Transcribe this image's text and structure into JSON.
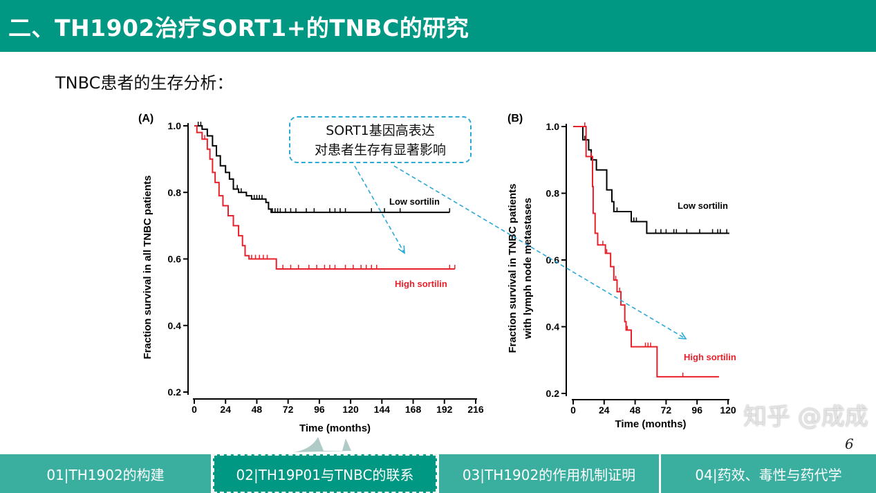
{
  "header": {
    "title": "二、TH1902治疗SORT1+的TNBC的研究"
  },
  "subtitle": "TNBC患者的生存分析：",
  "callout": {
    "line1": "SORT1基因高表达",
    "line2": "对患者生存有显著影响",
    "color": "#2aa8d6"
  },
  "footer": {
    "tabs": [
      {
        "label": "01|TH1902的构建",
        "active": false
      },
      {
        "label": "02|TH19P01与TNBC的联系",
        "active": true
      },
      {
        "label": "03|TH1902的作用机制证明",
        "active": false
      },
      {
        "label": "04|药效、毒性与药代学",
        "active": false
      }
    ],
    "page_number": "6",
    "watermark": "知乎 @成成"
  },
  "colors": {
    "brand": "#009883",
    "tab": "#3aafa0",
    "low": "#000000",
    "high": "#e8202a"
  },
  "chart_data": [
    {
      "type": "line",
      "panel": "(A)",
      "xlabel": "Time (months)",
      "ylabel": [
        "Fraction survival in all TNBC patients"
      ],
      "xlim": [
        0,
        216
      ],
      "ylim": [
        0.2,
        1.0
      ],
      "xticks": [
        0,
        24,
        48,
        72,
        96,
        120,
        144,
        168,
        192,
        216
      ],
      "yticks": [
        "0.2",
        "0.4",
        "0.6",
        "0.8",
        "1.0"
      ],
      "grid": false,
      "series": [
        {
          "name": "Low sortilin",
          "color": "#000000",
          "end": 196,
          "steps": [
            [
              0,
              1.0
            ],
            [
              6,
              0.99
            ],
            [
              10,
              0.97
            ],
            [
              14,
              0.94
            ],
            [
              17,
              0.91
            ],
            [
              20,
              0.88
            ],
            [
              24,
              0.86
            ],
            [
              27,
              0.84
            ],
            [
              30,
              0.81
            ],
            [
              34,
              0.8
            ],
            [
              40,
              0.79
            ],
            [
              44,
              0.78
            ],
            [
              55,
              0.77
            ],
            [
              57,
              0.75
            ],
            [
              59,
              0.74
            ]
          ],
          "censored": [
            3,
            5,
            33,
            36,
            46,
            48,
            50,
            52,
            60,
            62,
            64,
            66,
            70,
            74,
            78,
            86,
            92,
            104,
            108,
            112,
            116,
            136,
            146,
            158,
            196
          ]
        },
        {
          "name": "High sortilin",
          "color": "#e8202a",
          "end": 200,
          "steps": [
            [
              0,
              1.0
            ],
            [
              2,
              0.98
            ],
            [
              6,
              0.96
            ],
            [
              10,
              0.93
            ],
            [
              12,
              0.9
            ],
            [
              14,
              0.86
            ],
            [
              16,
              0.83
            ],
            [
              19,
              0.79
            ],
            [
              22,
              0.76
            ],
            [
              26,
              0.73
            ],
            [
              30,
              0.7
            ],
            [
              34,
              0.67
            ],
            [
              37,
              0.64
            ],
            [
              39,
              0.61
            ],
            [
              42,
              0.6
            ],
            [
              63,
              0.57
            ]
          ],
          "censored": [
            8,
            44,
            47,
            50,
            53,
            56,
            68,
            74,
            80,
            88,
            94,
            100,
            104,
            108,
            116,
            122,
            128,
            132,
            136,
            140,
            196,
            200
          ]
        }
      ]
    },
    {
      "type": "line",
      "panel": "(B)",
      "xlabel": "Time (months)",
      "ylabel": [
        "Fraction survival in TNBC patients",
        "with lymph node metastases"
      ],
      "xlim": [
        0,
        120
      ],
      "ylim": [
        0.2,
        1.0
      ],
      "xticks": [
        0,
        24,
        48,
        72,
        96,
        120
      ],
      "yticks": [
        "0.2",
        "0.4",
        "0.6",
        "0.8",
        "1.0"
      ],
      "grid": false,
      "series": [
        {
          "name": "Low sortilin",
          "color": "#000000",
          "end": 121,
          "steps": [
            [
              0,
              1.0
            ],
            [
              7.5,
              0.96
            ],
            [
              12,
              0.93
            ],
            [
              14,
              0.9
            ],
            [
              18,
              0.87
            ],
            [
              26,
              0.81
            ],
            [
              30,
              0.775
            ],
            [
              31.5,
              0.745
            ],
            [
              45,
              0.715
            ],
            [
              57,
              0.68
            ]
          ],
          "censored": [
            9,
            34,
            47,
            49,
            64,
            68,
            72,
            78,
            80,
            88,
            98,
            108,
            112,
            114,
            119
          ]
        },
        {
          "name": "High sortilin",
          "color": "#e8202a",
          "end": 113,
          "steps": [
            [
              0,
              1.0
            ],
            [
              10,
              0.91
            ],
            [
              15,
              0.82
            ],
            [
              15.5,
              0.74
            ],
            [
              17,
              0.68
            ],
            [
              19,
              0.645
            ],
            [
              25,
              0.62
            ],
            [
              29,
              0.58
            ],
            [
              31.5,
              0.54
            ],
            [
              34,
              0.505
            ],
            [
              37,
              0.465
            ],
            [
              40,
              0.415
            ],
            [
              41,
              0.39
            ],
            [
              45,
              0.34
            ],
            [
              65,
              0.25
            ]
          ],
          "censored": [
            9,
            14,
            23,
            26,
            33,
            36,
            42,
            56,
            58,
            60,
            85
          ]
        }
      ]
    }
  ]
}
